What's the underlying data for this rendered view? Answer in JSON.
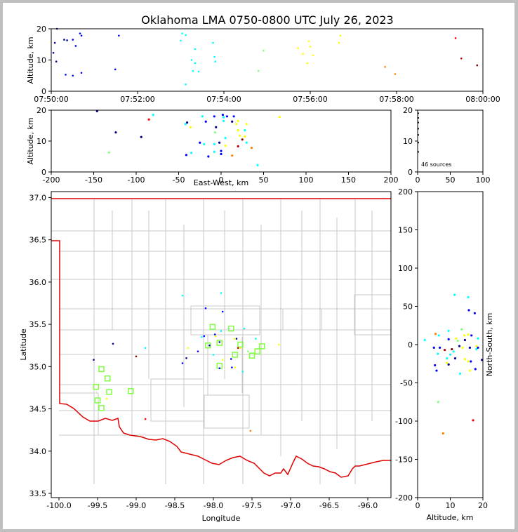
{
  "title": "Oklahoma LMA 0750-0800 UTC July 26, 2023",
  "source_count_label": "46 sources",
  "colors": {
    "state_border": "#e00000",
    "county_lines": "#c8c8c8",
    "stations": "#80ff40",
    "figure_bg": "#c0c0c0"
  },
  "chart_data": [
    {
      "id": "time_altitude",
      "type": "scatter",
      "xlabel": "",
      "ylabel": "Altitude, km",
      "x_ticks": [
        "07:50:00",
        "07:52:00",
        "07:54:00",
        "07:56:00",
        "07:58:00",
        "08:00:00"
      ],
      "ylim": [
        0,
        20
      ],
      "y_ticks": [
        "0",
        "10",
        "20"
      ],
      "points": [
        {
          "x": "07:50:03",
          "y": 12.3,
          "c": "#00008f"
        },
        {
          "x": "07:50:05",
          "y": 15.5,
          "c": "#00008f"
        },
        {
          "x": "07:50:07",
          "y": 9.5,
          "c": "#00008f"
        },
        {
          "x": "07:50:08",
          "y": 20.0,
          "c": "#00008f"
        },
        {
          "x": "07:50:18",
          "y": 16.5,
          "c": "#00008f"
        },
        {
          "x": "07:50:22",
          "y": 16.3,
          "c": "#00008f"
        },
        {
          "x": "07:50:20",
          "y": 5.3,
          "c": "#0000ff"
        },
        {
          "x": "07:50:30",
          "y": 16.5,
          "c": "#0000ff"
        },
        {
          "x": "07:50:30",
          "y": 5.0,
          "c": "#0000ff"
        },
        {
          "x": "07:50:34",
          "y": 14.5,
          "c": "#0000ff"
        },
        {
          "x": "07:50:40",
          "y": 18.5,
          "c": "#0000ff"
        },
        {
          "x": "07:50:42",
          "y": 17.8,
          "c": "#0000ff"
        },
        {
          "x": "07:50:42",
          "y": 5.9,
          "c": "#0000ff"
        },
        {
          "x": "07:51:29",
          "y": 7.0,
          "c": "#0000ff"
        },
        {
          "x": "07:51:34",
          "y": 17.8,
          "c": "#0000ff"
        },
        {
          "x": "07:53:00",
          "y": 16.2,
          "c": "#00ffff"
        },
        {
          "x": "07:53:02",
          "y": 18.5,
          "c": "#00ffff"
        },
        {
          "x": "07:53:07",
          "y": 2.2,
          "c": "#00ffff"
        },
        {
          "x": "07:53:07",
          "y": 18.0,
          "c": "#00ffff"
        },
        {
          "x": "07:53:15",
          "y": 10.0,
          "c": "#00ffff"
        },
        {
          "x": "07:53:17",
          "y": 6.5,
          "c": "#00ffff"
        },
        {
          "x": "07:53:20",
          "y": 13.5,
          "c": "#00ffff"
        },
        {
          "x": "07:53:20",
          "y": 9.0,
          "c": "#00ffff"
        },
        {
          "x": "07:53:25",
          "y": 6.3,
          "c": "#00ffff"
        },
        {
          "x": "07:53:45",
          "y": 15.5,
          "c": "#00ffff"
        },
        {
          "x": "07:53:47",
          "y": 11.0,
          "c": "#00ffff"
        },
        {
          "x": "07:53:48",
          "y": 9.5,
          "c": "#00ffff"
        },
        {
          "x": "07:54:48",
          "y": 6.5,
          "c": "#80ff80"
        },
        {
          "x": "07:54:55",
          "y": 13.0,
          "c": "#80ff80"
        },
        {
          "x": "07:55:43",
          "y": 13.8,
          "c": "#ffff00"
        },
        {
          "x": "07:55:50",
          "y": 12.0,
          "c": "#ffff00"
        },
        {
          "x": "07:55:56",
          "y": 9.0,
          "c": "#ffff00"
        },
        {
          "x": "07:55:58",
          "y": 16.0,
          "c": "#ffff00"
        },
        {
          "x": "07:56:00",
          "y": 14.3,
          "c": "#ffff00"
        },
        {
          "x": "07:56:04",
          "y": 11.5,
          "c": "#ffff00"
        },
        {
          "x": "07:56:40",
          "y": 15.5,
          "c": "#ffff00"
        },
        {
          "x": "07:56:42",
          "y": 17.8,
          "c": "#ffff00"
        },
        {
          "x": "07:57:44",
          "y": 7.8,
          "c": "#ff8000"
        },
        {
          "x": "07:57:58",
          "y": 5.5,
          "c": "#ff8000"
        },
        {
          "x": "07:59:22",
          "y": 17.0,
          "c": "#ff0000"
        },
        {
          "x": "07:59:30",
          "y": 10.5,
          "c": "#c00000"
        },
        {
          "x": "07:59:52",
          "y": 8.3,
          "c": "#800000"
        }
      ]
    },
    {
      "id": "eastwest_altitude",
      "type": "scatter",
      "xlabel": "East-West, km",
      "ylabel": "Altitude, km",
      "xlim": [
        -200,
        200
      ],
      "x_ticks": [
        "-200",
        "-150",
        "-100",
        "-50",
        "0",
        "50",
        "100",
        "150",
        "200"
      ],
      "ylim": [
        0,
        20
      ],
      "y_ticks": [
        "0",
        "10",
        "20"
      ],
      "points": [
        {
          "x": -146,
          "y": 19.7,
          "c": "#00008f"
        },
        {
          "x": -124,
          "y": 12.8,
          "c": "#00008f"
        },
        {
          "x": -94,
          "y": 11.3,
          "c": "#00008f"
        },
        {
          "x": -132,
          "y": 6.3,
          "c": "#80ff80"
        },
        {
          "x": -85,
          "y": 17.0,
          "c": "#ff0000"
        },
        {
          "x": -80,
          "y": 18.5,
          "c": "#00ffff"
        },
        {
          "x": -40,
          "y": 16.0,
          "c": "#00008f"
        },
        {
          "x": -42,
          "y": 15.5,
          "c": "#00ffff"
        },
        {
          "x": -36,
          "y": 14.5,
          "c": "#ffff00"
        },
        {
          "x": -41,
          "y": 5.5,
          "c": "#0000ff"
        },
        {
          "x": -35,
          "y": 6.2,
          "c": "#00ffff"
        },
        {
          "x": -22,
          "y": 18.0,
          "c": "#00ffff"
        },
        {
          "x": -18,
          "y": 16.3,
          "c": "#0000ff"
        },
        {
          "x": -25,
          "y": 9.5,
          "c": "#0000ff"
        },
        {
          "x": -20,
          "y": 9.0,
          "c": "#00ffff"
        },
        {
          "x": -15,
          "y": 5.0,
          "c": "#0000ff"
        },
        {
          "x": -8,
          "y": 18.0,
          "c": "#0000ff"
        },
        {
          "x": -6,
          "y": 14.5,
          "c": "#00008f"
        },
        {
          "x": -7,
          "y": 12.8,
          "c": "#80ff80"
        },
        {
          "x": -8,
          "y": 9.0,
          "c": "#00ffff"
        },
        {
          "x": -8,
          "y": 6.5,
          "c": "#00ffff"
        },
        {
          "x": -2,
          "y": 9.5,
          "c": "#00008f"
        },
        {
          "x": 0,
          "y": 6.8,
          "c": "#0000ff"
        },
        {
          "x": 0,
          "y": 5.8,
          "c": "#0000ff"
        },
        {
          "x": 2,
          "y": 18.5,
          "c": "#0000ff"
        },
        {
          "x": 3,
          "y": 17.7,
          "c": "#00ffff"
        },
        {
          "x": 3,
          "y": 16.5,
          "c": "#00ffff"
        },
        {
          "x": 5,
          "y": 11.0,
          "c": "#00ffff"
        },
        {
          "x": 5,
          "y": 8.5,
          "c": "#ffff00"
        },
        {
          "x": 7,
          "y": 18.0,
          "c": "#0000ff"
        },
        {
          "x": 15,
          "y": 18.0,
          "c": "#0000ff"
        },
        {
          "x": 13,
          "y": 16.3,
          "c": "#00008f"
        },
        {
          "x": 18,
          "y": 15.5,
          "c": "#ffff00"
        },
        {
          "x": 20,
          "y": 13.5,
          "c": "#ffff00"
        },
        {
          "x": 20,
          "y": 16.5,
          "c": "#ffff00"
        },
        {
          "x": 22,
          "y": 11.8,
          "c": "#ffff00"
        },
        {
          "x": 25,
          "y": 10.5,
          "c": "#800000"
        },
        {
          "x": 20,
          "y": 8.3,
          "c": "#c00000"
        },
        {
          "x": 13,
          "y": 5.3,
          "c": "#ff8000"
        },
        {
          "x": 28,
          "y": 11.5,
          "c": "#ffff00"
        },
        {
          "x": 30,
          "y": 15.5,
          "c": "#ffff00"
        },
        {
          "x": 28,
          "y": 13.5,
          "c": "#00ffff"
        },
        {
          "x": 30,
          "y": 9.5,
          "c": "#00ffff"
        },
        {
          "x": 36,
          "y": 7.8,
          "c": "#ff8000"
        },
        {
          "x": 43,
          "y": 2.2,
          "c": "#00ffff"
        },
        {
          "x": 69,
          "y": 17.8,
          "c": "#ffff00"
        }
      ]
    },
    {
      "id": "altitude_histogram",
      "type": "bar",
      "xlim": [
        0,
        100
      ],
      "x_ticks": [
        "0",
        "50",
        "100"
      ],
      "ylim": [
        0,
        20
      ],
      "y_ticks": [
        "0",
        "10",
        "20"
      ],
      "points": [
        {
          "x": 1,
          "y": 19
        },
        {
          "x": 1,
          "y": 17.5
        },
        {
          "x": 1,
          "y": 16
        },
        {
          "x": 1,
          "y": 14
        },
        {
          "x": 1,
          "y": 12
        },
        {
          "x": 1,
          "y": 9.5
        },
        {
          "x": 1,
          "y": 6.5
        }
      ]
    },
    {
      "id": "plan_view",
      "type": "scatter",
      "xlabel": "Longitude",
      "ylabel": "Latitude",
      "xlim": [
        -100.1,
        -95.7
      ],
      "x_ticks": [
        "-100.0",
        "-99.5",
        "-99.0",
        "-98.5",
        "-98.0",
        "-97.5",
        "-97.0",
        "-96.5",
        "-96.0"
      ],
      "ylim": [
        33.45,
        37.07
      ],
      "y_ticks": [
        "33.5",
        "34.0",
        "34.5",
        "35.0",
        "35.5",
        "36.0",
        "36.5",
        "37.0"
      ],
      "stations": [
        {
          "lon": -99.52,
          "lat": 34.76
        },
        {
          "lon": -99.5,
          "lat": 34.6
        },
        {
          "lon": -99.45,
          "lat": 34.51
        },
        {
          "lon": -99.45,
          "lat": 34.97
        },
        {
          "lon": -99.37,
          "lat": 34.86
        },
        {
          "lon": -99.35,
          "lat": 34.7
        },
        {
          "lon": -99.07,
          "lat": 34.71
        },
        {
          "lon": -98.07,
          "lat": 35.25
        },
        {
          "lon": -98.01,
          "lat": 35.47
        },
        {
          "lon": -97.92,
          "lat": 35.28
        },
        {
          "lon": -97.92,
          "lat": 35.01
        },
        {
          "lon": -97.77,
          "lat": 35.45
        },
        {
          "lon": -97.72,
          "lat": 35.14
        },
        {
          "lon": -97.65,
          "lat": 35.26
        },
        {
          "lon": -97.5,
          "lat": 35.13
        },
        {
          "lon": -97.43,
          "lat": 35.18
        },
        {
          "lon": -97.37,
          "lat": 35.24
        }
      ],
      "points": [
        {
          "x": -99.55,
          "y": 35.08,
          "c": "#00008f"
        },
        {
          "x": -99.3,
          "y": 35.27,
          "c": "#00008f"
        },
        {
          "x": -99.0,
          "y": 35.12,
          "c": "#800000"
        },
        {
          "x": -98.88,
          "y": 35.22,
          "c": "#00ffff"
        },
        {
          "x": -98.88,
          "y": 34.38,
          "c": "#ff0000"
        },
        {
          "x": -99.38,
          "y": 34.62,
          "c": "#ffff00"
        },
        {
          "x": -98.4,
          "y": 35.84,
          "c": "#00ffff"
        },
        {
          "x": -98.4,
          "y": 35.04,
          "c": "#0000ff"
        },
        {
          "x": -98.35,
          "y": 35.1,
          "c": "#00008f"
        },
        {
          "x": -98.33,
          "y": 35.22,
          "c": "#ffff00"
        },
        {
          "x": -98.1,
          "y": 35.69,
          "c": "#0000ff"
        },
        {
          "x": -98.12,
          "y": 35.36,
          "c": "#0000ff"
        },
        {
          "x": -98.15,
          "y": 35.35,
          "c": "#00ffff"
        },
        {
          "x": -98.2,
          "y": 35.18,
          "c": "#0000ff"
        },
        {
          "x": -98.05,
          "y": 35.25,
          "c": "#00008f"
        },
        {
          "x": -97.98,
          "y": 35.38,
          "c": "#0000ff"
        },
        {
          "x": -97.97,
          "y": 35.36,
          "c": "#ffff00"
        },
        {
          "x": -98.0,
          "y": 35.14,
          "c": "#00ffff"
        },
        {
          "x": -97.92,
          "y": 35.29,
          "c": "#00008f"
        },
        {
          "x": -97.92,
          "y": 34.98,
          "c": "#0000ff"
        },
        {
          "x": -97.9,
          "y": 35.87,
          "c": "#00ffff"
        },
        {
          "x": -97.88,
          "y": 35.65,
          "c": "#0000ff"
        },
        {
          "x": -97.9,
          "y": 35.42,
          "c": "#00ffff"
        },
        {
          "x": -97.88,
          "y": 35.08,
          "c": "#ffff00"
        },
        {
          "x": -97.8,
          "y": 35.45,
          "c": "#80ff80"
        },
        {
          "x": -97.77,
          "y": 35.09,
          "c": "#0000ff"
        },
        {
          "x": -97.76,
          "y": 34.99,
          "c": "#0000ff"
        },
        {
          "x": -97.73,
          "y": 35.33,
          "c": "#ffff00"
        },
        {
          "x": -97.7,
          "y": 35.33,
          "c": "#00008f"
        },
        {
          "x": -97.68,
          "y": 35.22,
          "c": "#c00000"
        },
        {
          "x": -97.65,
          "y": 35.22,
          "c": "#ffff00"
        },
        {
          "x": -97.72,
          "y": 34.99,
          "c": "#ffff00"
        },
        {
          "x": -97.62,
          "y": 34.94,
          "c": "#00ffff"
        },
        {
          "x": -97.6,
          "y": 35.45,
          "c": "#00ffff"
        },
        {
          "x": -97.52,
          "y": 34.24,
          "c": "#ff8000"
        },
        {
          "x": -97.45,
          "y": 35.33,
          "c": "#00ffff"
        },
        {
          "x": -97.15,
          "y": 35.26,
          "c": "#ffff00"
        },
        {
          "x": -97.55,
          "y": 35.18,
          "c": "#80ff80"
        }
      ]
    },
    {
      "id": "altitude_northsouth",
      "type": "scatter",
      "xlabel": "Altitude, km",
      "ylabel": "North-South, km",
      "xlim": [
        0,
        20
      ],
      "x_ticks": [
        "0",
        "10",
        "20"
      ],
      "ylim": [
        -200,
        200
      ],
      "y_ticks": [
        "-200",
        "-150",
        "-100",
        "-50",
        "0",
        "50",
        "100",
        "150",
        "200"
      ],
      "points": [
        {
          "x": 2.2,
          "y": 6,
          "c": "#00ffff"
        },
        {
          "x": 5.0,
          "y": -4,
          "c": "#0000ff"
        },
        {
          "x": 5.3,
          "y": -27,
          "c": "#0000ff"
        },
        {
          "x": 5.5,
          "y": 14,
          "c": "#ff8000"
        },
        {
          "x": 5.8,
          "y": -34,
          "c": "#0000ff"
        },
        {
          "x": 6.3,
          "y": -75,
          "c": "#80ff80"
        },
        {
          "x": 6.2,
          "y": -12,
          "c": "#00ffff"
        },
        {
          "x": 6.5,
          "y": 12,
          "c": "#00ffff"
        },
        {
          "x": 6.8,
          "y": -4,
          "c": "#0000ff"
        },
        {
          "x": 7.8,
          "y": -116,
          "c": "#ff8000"
        },
        {
          "x": 8.3,
          "y": -7,
          "c": "#c00000"
        },
        {
          "x": 9.0,
          "y": -24,
          "c": "#ffff00"
        },
        {
          "x": 9.0,
          "y": -18,
          "c": "#00ffff"
        },
        {
          "x": 9.5,
          "y": 18,
          "c": "#00ffff"
        },
        {
          "x": 9.5,
          "y": 7,
          "c": "#0000ff"
        },
        {
          "x": 9.5,
          "y": -26,
          "c": "#00008f"
        },
        {
          "x": 10.0,
          "y": -13,
          "c": "#00ffff"
        },
        {
          "x": 10.5,
          "y": -6,
          "c": "#800000"
        },
        {
          "x": 11.0,
          "y": -9,
          "c": "#00ffff"
        },
        {
          "x": 11.3,
          "y": 65,
          "c": "#00ffff"
        },
        {
          "x": 11.5,
          "y": -18,
          "c": "#00008f"
        },
        {
          "x": 11.8,
          "y": 8,
          "c": "#ffff00"
        },
        {
          "x": 12.3,
          "y": 5,
          "c": "#80ff80"
        },
        {
          "x": 12.8,
          "y": -2,
          "c": "#00008f"
        },
        {
          "x": 13.0,
          "y": -38,
          "c": "#00ffff"
        },
        {
          "x": 13.5,
          "y": 20,
          "c": "#80ff80"
        },
        {
          "x": 13.8,
          "y": -4,
          "c": "#ffff00"
        },
        {
          "x": 14.3,
          "y": 12,
          "c": "#ffff00"
        },
        {
          "x": 14.5,
          "y": 6,
          "c": "#00008f"
        },
        {
          "x": 14.5,
          "y": -19,
          "c": "#ffff00"
        },
        {
          "x": 15.5,
          "y": 62,
          "c": "#00ffff"
        },
        {
          "x": 15.5,
          "y": 13,
          "c": "#ffff00"
        },
        {
          "x": 15.5,
          "y": -22,
          "c": "#ffff00"
        },
        {
          "x": 15.7,
          "y": 45,
          "c": "#0000ff"
        },
        {
          "x": 16.0,
          "y": -34,
          "c": "#ffff00"
        },
        {
          "x": 16.0,
          "y": -4,
          "c": "#00008f"
        },
        {
          "x": 16.3,
          "y": -22,
          "c": "#0000ff"
        },
        {
          "x": 16.5,
          "y": 12,
          "c": "#0000ff"
        },
        {
          "x": 17.0,
          "y": -99,
          "c": "#ff0000"
        },
        {
          "x": 17.5,
          "y": 41,
          "c": "#0000ff"
        },
        {
          "x": 17.7,
          "y": -32,
          "c": "#0000ff"
        },
        {
          "x": 18.0,
          "y": -2,
          "c": "#ffff00"
        },
        {
          "x": 18.0,
          "y": -6,
          "c": "#00ffff"
        },
        {
          "x": 18.5,
          "y": -4,
          "c": "#0000ff"
        },
        {
          "x": 18.5,
          "y": 8,
          "c": "#00ffff"
        },
        {
          "x": 19.7,
          "y": -20,
          "c": "#00008f"
        }
      ]
    }
  ]
}
